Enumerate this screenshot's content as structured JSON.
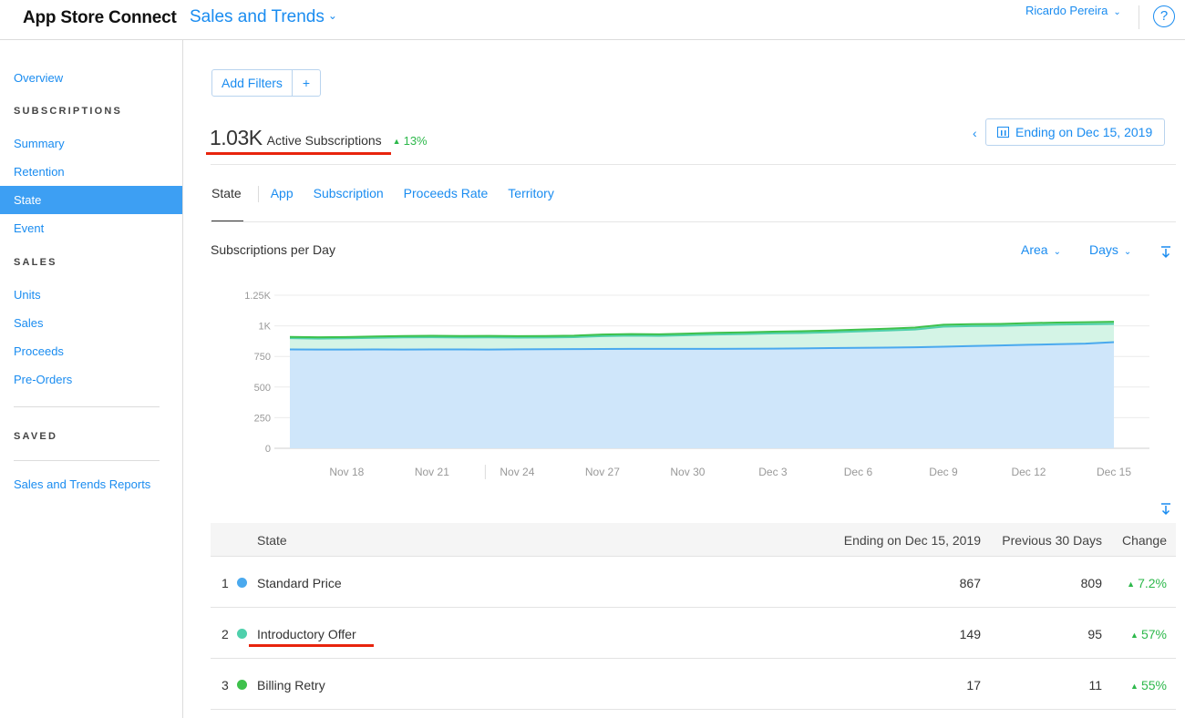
{
  "app": {
    "brand": "App Store Connect",
    "module": "Sales and Trends",
    "user": "Ricardo Pereira",
    "help_glyph": "?"
  },
  "sidebar": {
    "overview": "Overview",
    "sections": [
      {
        "heading": "SUBSCRIPTIONS",
        "items": [
          "Summary",
          "Retention",
          "State",
          "Event"
        ]
      },
      {
        "heading": "SALES",
        "items": [
          "Units",
          "Sales",
          "Proceeds",
          "Pre-Orders"
        ]
      },
      {
        "heading": "SAVED",
        "items": [
          "Sales and Trends Reports"
        ]
      }
    ],
    "active_item": "State"
  },
  "filters": {
    "add_label": "Add Filters",
    "plus": "+"
  },
  "metric": {
    "value": "1.03K",
    "label": "Active Subscriptions",
    "change": "13%"
  },
  "date": {
    "prev_arrow": "‹",
    "label": "Ending on Dec 15, 2019"
  },
  "tabs": [
    "State",
    "App",
    "Subscription",
    "Proceeds Rate",
    "Territory"
  ],
  "active_tab": "State",
  "chart": {
    "title": "Subscriptions per Day",
    "type_dropdown": "Area",
    "period_dropdown": "Days"
  },
  "chart_data": {
    "type": "area",
    "stacked": true,
    "x": [
      "Nov 16",
      "Nov 17",
      "Nov 18",
      "Nov 19",
      "Nov 20",
      "Nov 21",
      "Nov 22",
      "Nov 23",
      "Nov 24",
      "Nov 25",
      "Nov 26",
      "Nov 27",
      "Nov 28",
      "Nov 29",
      "Nov 30",
      "Dec 1",
      "Dec 2",
      "Dec 3",
      "Dec 4",
      "Dec 5",
      "Dec 6",
      "Dec 7",
      "Dec 8",
      "Dec 9",
      "Dec 10",
      "Dec 11",
      "Dec 12",
      "Dec 13",
      "Dec 14",
      "Dec 15"
    ],
    "x_tick_labels": [
      "Nov 18",
      "Nov 21",
      "Nov 24",
      "Nov 27",
      "Nov 30",
      "Dec 3",
      "Dec 6",
      "Dec 9",
      "Dec 12",
      "Dec 15"
    ],
    "y_tick_labels": [
      "0",
      "250",
      "500",
      "750",
      "1K",
      "1.25K"
    ],
    "ylim": [
      0,
      1250
    ],
    "grid": true,
    "series": [
      {
        "name": "Standard Price",
        "color": "#4aa9ee",
        "fill": "#cfe6fa",
        "values": [
          807,
          806,
          806,
          807,
          806,
          807,
          807,
          806,
          808,
          809,
          810,
          811,
          812,
          812,
          812,
          812,
          813,
          814,
          816,
          818,
          820,
          822,
          825,
          830,
          835,
          840,
          845,
          850,
          855,
          867
        ]
      },
      {
        "name": "Introductory Offer",
        "color": "#4fd0ac",
        "fill": "#d4f4e6",
        "values": [
          92,
          90,
          92,
          95,
          100,
          100,
          98,
          100,
          96,
          96,
          98,
          105,
          108,
          106,
          112,
          117,
          120,
          124,
          125,
          129,
          134,
          140,
          145,
          163,
          163,
          160,
          160,
          160,
          158,
          149
        ]
      },
      {
        "name": "Billing Retry",
        "color": "#3ec14c",
        "fill": "#bfe9c4",
        "values": [
          11,
          11,
          11,
          11,
          11,
          12,
          12,
          12,
          12,
          12,
          12,
          13,
          13,
          13,
          13,
          14,
          14,
          14,
          15,
          15,
          15,
          15,
          16,
          16,
          16,
          16,
          17,
          17,
          17,
          17
        ]
      }
    ]
  },
  "table": {
    "headers": {
      "state": "State",
      "current": "Ending on Dec 15, 2019",
      "previous": "Previous 30 Days",
      "change": "Change"
    },
    "rows": [
      {
        "rank": "1",
        "state": "Standard Price",
        "color": "#4aa9ee",
        "current": "867",
        "previous": "809",
        "change": "7.2%"
      },
      {
        "rank": "2",
        "state": "Introductory Offer",
        "color": "#4fd0ac",
        "current": "149",
        "previous": "95",
        "change": "57%"
      },
      {
        "rank": "3",
        "state": "Billing Retry",
        "color": "#3ec14c",
        "current": "17",
        "previous": "11",
        "change": "55%"
      }
    ]
  }
}
